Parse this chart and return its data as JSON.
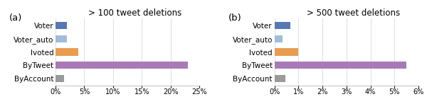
{
  "categories": [
    "Voter",
    "Voter_auto",
    "Ivoted",
    "ByTweet",
    "ByAccount"
  ],
  "chart_a": {
    "title": "> 100 tweet deletions",
    "label": "(a)",
    "values": [
      2.0,
      2.0,
      4.0,
      23.0,
      1.5
    ],
    "xlim": [
      0,
      25
    ],
    "xticks": [
      0,
      5,
      10,
      15,
      20,
      25
    ]
  },
  "chart_b": {
    "title": "> 500 tweet deletions",
    "label": "(b)",
    "values": [
      0.65,
      0.35,
      1.0,
      5.5,
      0.45
    ],
    "xlim": [
      0,
      6
    ],
    "xticks": [
      0,
      1,
      2,
      3,
      4,
      5,
      6
    ]
  },
  "colors": [
    "#5878b4",
    "#a0bcd8",
    "#e89c50",
    "#a87ab8",
    "#9a9a9a"
  ],
  "bar_height": 0.55,
  "background_color": "#ffffff",
  "title_fontsize": 8.5,
  "label_fontsize": 9.5,
  "tick_fontsize": 7,
  "ytick_fontsize": 7.5,
  "grid_color": "#d8d8d8",
  "spine_color": "#aaaaaa"
}
